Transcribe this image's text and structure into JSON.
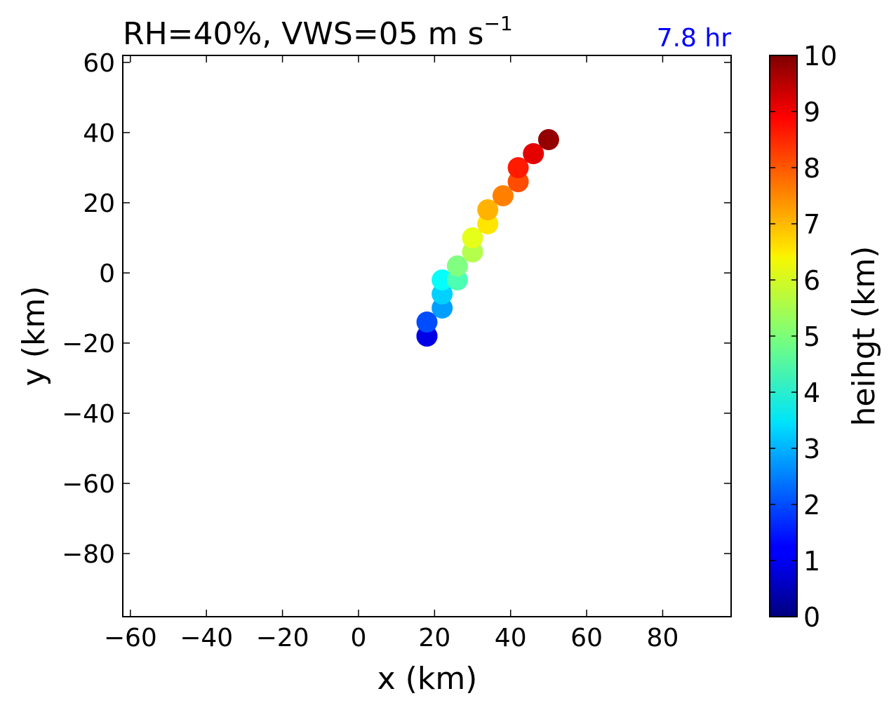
{
  "chart_data": {
    "type": "scatter",
    "title": "RH=40%, VWS=05 m s",
    "title_superscript": "−1",
    "annotation": {
      "text": "7.8 hr",
      "color": "#0000ff"
    },
    "xlabel": "x (km)",
    "ylabel": "y (km)",
    "xlim": [
      -62,
      98
    ],
    "ylim": [
      -98,
      62
    ],
    "xticks": [
      -60,
      -40,
      -20,
      0,
      20,
      40,
      60,
      80
    ],
    "xtick_labels": [
      "−60",
      "−40",
      "−20",
      "0",
      "20",
      "40",
      "60",
      "80"
    ],
    "yticks": [
      60,
      40,
      20,
      0,
      -20,
      -40,
      -60,
      -80
    ],
    "ytick_labels": [
      "60",
      "40",
      "20",
      "0",
      "−20",
      "−40",
      "−60",
      "−80"
    ],
    "grid": false,
    "colormap": "jet",
    "points": [
      {
        "x": 18,
        "y": -18,
        "height": 0.5
      },
      {
        "x": 18,
        "y": -18,
        "height": 1.0
      },
      {
        "x": 18,
        "y": -14,
        "height": 2.0
      },
      {
        "x": 22,
        "y": -10,
        "height": 2.8
      },
      {
        "x": 22,
        "y": -6,
        "height": 3.3
      },
      {
        "x": 22,
        "y": -2,
        "height": 3.8
      },
      {
        "x": 26,
        "y": -2,
        "height": 4.5
      },
      {
        "x": 26,
        "y": 2,
        "height": 5.0
      },
      {
        "x": 30,
        "y": 6,
        "height": 5.5
      },
      {
        "x": 30,
        "y": 10,
        "height": 6.0
      },
      {
        "x": 34,
        "y": 14,
        "height": 6.5
      },
      {
        "x": 34,
        "y": 18,
        "height": 7.0
      },
      {
        "x": 38,
        "y": 22,
        "height": 7.5
      },
      {
        "x": 42,
        "y": 26,
        "height": 8.0
      },
      {
        "x": 42,
        "y": 30,
        "height": 8.5
      },
      {
        "x": 46,
        "y": 34,
        "height": 9.0
      },
      {
        "x": 50,
        "y": 38,
        "height": 9.8
      }
    ],
    "colorbar": {
      "label": "heihgt (km)",
      "min": 0,
      "max": 10,
      "ticks": [
        0,
        1,
        2,
        3,
        4,
        5,
        6,
        7,
        8,
        9,
        10
      ],
      "tick_labels": [
        "0",
        "1",
        "2",
        "3",
        "4",
        "5",
        "6",
        "7",
        "8",
        "9",
        "10"
      ]
    }
  }
}
